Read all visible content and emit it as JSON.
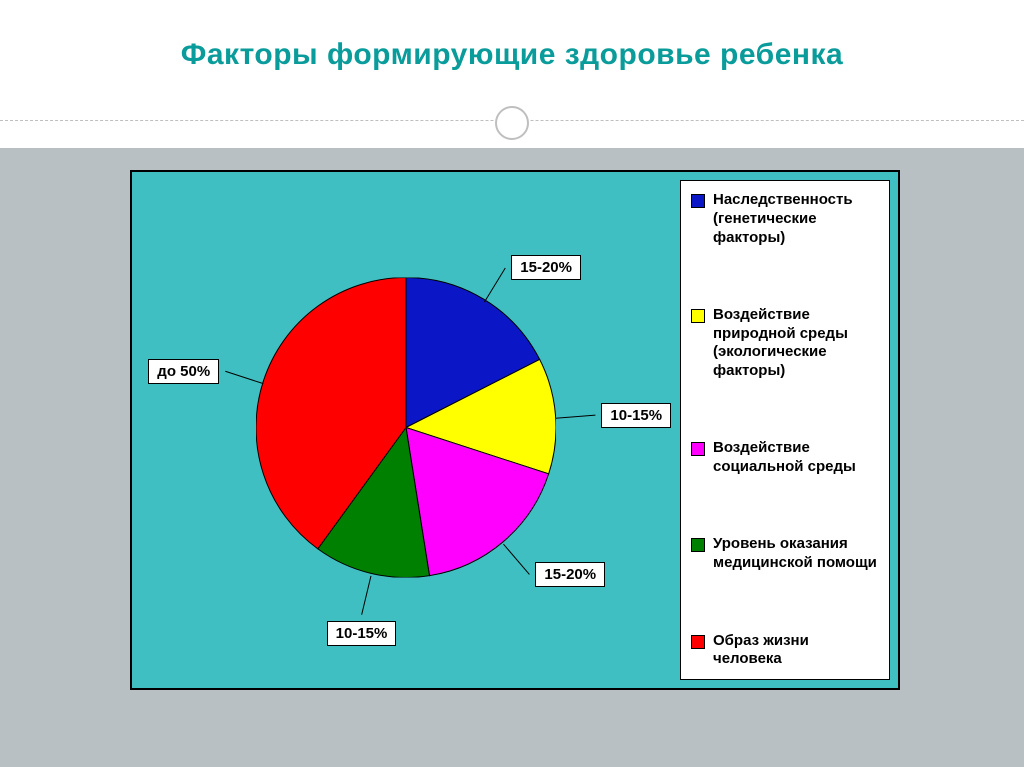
{
  "title": "Факторы  формирующие здоровье ребенка",
  "title_color": "#0a9b9b",
  "band_color": "#b8c0c4",
  "chart_bg": "#40bfc2",
  "pie": {
    "type": "pie",
    "radius": 150,
    "start_angle_deg": -90,
    "stroke": "#000000",
    "stroke_width": 1,
    "slices": [
      {
        "key": "heredity",
        "value": 17.5,
        "color": "#0b17c7",
        "callout": "15-20%"
      },
      {
        "key": "environment",
        "value": 12.5,
        "color": "#ffff00",
        "callout": "10-15%"
      },
      {
        "key": "social",
        "value": 17.5,
        "color": "#ff00ff",
        "callout": "15-20%"
      },
      {
        "key": "medical",
        "value": 12.5,
        "color": "#008000",
        "callout": "10-15%"
      },
      {
        "key": "lifestyle",
        "value": 40.0,
        "color": "#ff0000",
        "callout": "до 50%"
      }
    ]
  },
  "legend": {
    "bg": "#ffffff",
    "font_size": 15,
    "items": [
      {
        "key": "heredity",
        "color": "#0b17c7",
        "label": "Наследственность (генетические факторы)"
      },
      {
        "key": "environment",
        "color": "#ffff00",
        "label": "Воздействие природной среды (экологические факторы)"
      },
      {
        "key": "social",
        "color": "#ff00ff",
        "label": "Воздействие социальной среды"
      },
      {
        "key": "medical",
        "color": "#008000",
        "label": "Уровень оказания медицинской помощи"
      },
      {
        "key": "lifestyle",
        "color": "#ff0000",
        "label": "Образ жизни человека"
      }
    ]
  },
  "callout_style": {
    "bg": "#ffffff",
    "border": "#000000",
    "font_size": 15,
    "leader_extend": 40,
    "box_gap": 6
  }
}
